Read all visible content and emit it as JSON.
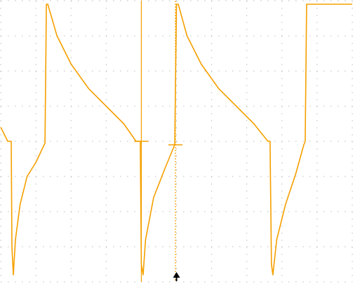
{
  "chart_data": {
    "type": "line",
    "title": "",
    "xlabel": "",
    "ylabel": "",
    "grid": true,
    "grid_divisions": {
      "x": 10,
      "y": 8
    },
    "xlim": [
      0,
      10
    ],
    "ylim": [
      -4,
      4
    ],
    "colors": {
      "trace": "#f5a000",
      "grid": "#bdbdbd",
      "background": "#ffffff",
      "marker": "#000000"
    },
    "series": [
      {
        "values_xy": [
          [
            0.0,
            0.4
          ],
          [
            0.2,
            0.0
          ],
          [
            0.3,
            0.0
          ],
          [
            0.32,
            -3.0
          ],
          [
            0.36,
            -3.8
          ],
          [
            0.42,
            -2.8
          ],
          [
            0.55,
            -1.8
          ],
          [
            0.75,
            -1.0
          ],
          [
            1.0,
            -0.6
          ],
          [
            1.26,
            -0.05
          ],
          [
            1.3,
            3.9
          ],
          [
            1.34,
            3.9
          ],
          [
            1.6,
            3.0
          ],
          [
            2.0,
            2.2
          ],
          [
            2.5,
            1.5
          ],
          [
            3.0,
            1.0
          ],
          [
            3.5,
            0.5
          ],
          [
            3.85,
            0.0
          ],
          [
            3.97,
            0.0
          ],
          [
            4.0,
            -3.5
          ],
          [
            4.05,
            -3.8
          ],
          [
            4.12,
            -2.8
          ],
          [
            4.35,
            -1.6
          ],
          [
            4.7,
            -0.7
          ],
          [
            4.95,
            -0.1
          ],
          [
            5.0,
            3.9
          ],
          [
            5.05,
            3.9
          ],
          [
            5.3,
            3.0
          ],
          [
            5.7,
            2.2
          ],
          [
            6.2,
            1.5
          ],
          [
            6.7,
            1.0
          ],
          [
            7.2,
            0.5
          ],
          [
            7.6,
            0.0
          ],
          [
            7.66,
            0.0
          ],
          [
            7.7,
            -3.5
          ],
          [
            7.74,
            -3.8
          ],
          [
            7.85,
            -2.8
          ],
          [
            8.1,
            -1.8
          ],
          [
            8.4,
            -0.9
          ],
          [
            8.62,
            -0.1
          ],
          [
            8.66,
            0.0
          ],
          [
            8.7,
            3.9
          ],
          [
            10.0,
            3.9
          ]
        ]
      }
    ],
    "cursors": [
      {
        "x": 4.0,
        "y": 0.0
      },
      {
        "x": 4.97,
        "y": -0.1
      }
    ],
    "trigger_marker_x": 5.0
  }
}
